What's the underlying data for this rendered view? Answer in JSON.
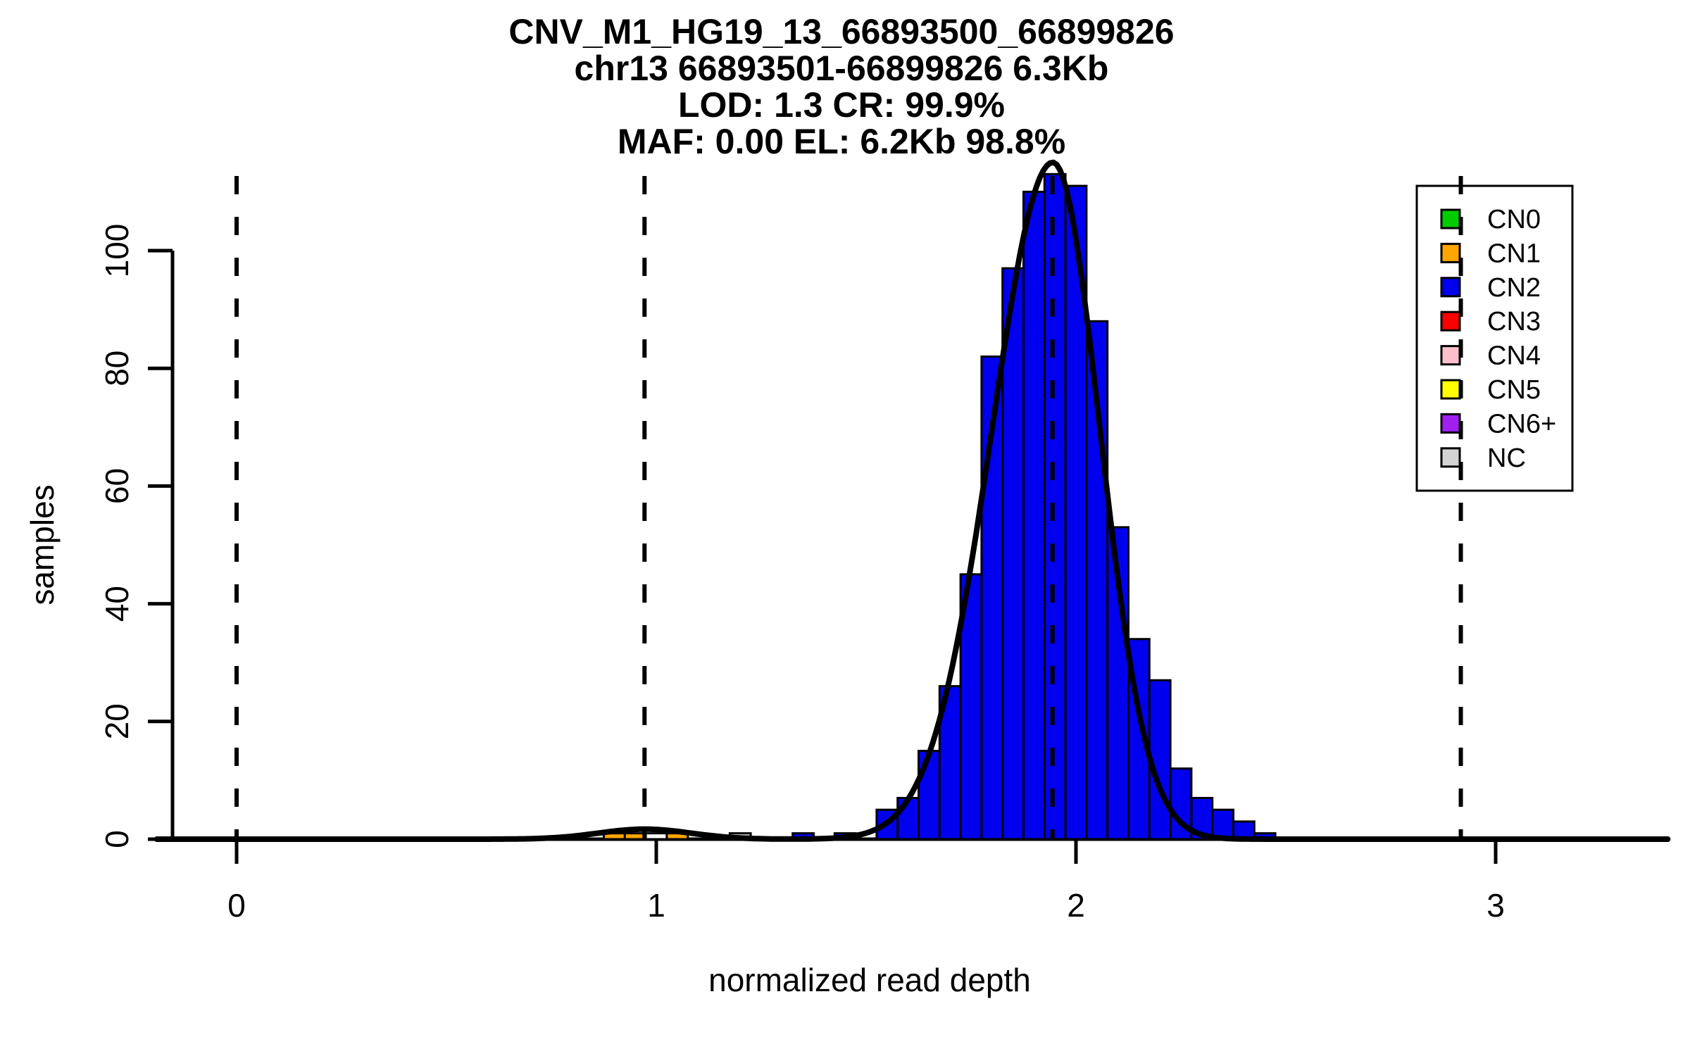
{
  "chart_data": {
    "type": "bar",
    "subtype": "histogram",
    "title_lines": [
      "CNV_M1_HG19_13_66893500_66899826",
      "chr13 66893501-66899826 6.3Kb",
      "LOD: 1.3 CR: 99.9%",
      "MAF: 0.00 EL: 6.2Kb 98.8%"
    ],
    "xlabel": "normalized read depth",
    "ylabel": "samples",
    "x_ticks": [
      0,
      1,
      2,
      3
    ],
    "y_ticks": [
      0,
      20,
      40,
      60,
      80,
      100
    ],
    "xlim": [
      -0.19,
      3.41
    ],
    "ylim": [
      0,
      115
    ],
    "grid": false,
    "bin_width": 0.05,
    "bars": [
      {
        "x0": 0.875,
        "count": 1,
        "cn": "CN1"
      },
      {
        "x0": 0.925,
        "count": 1,
        "cn": "CN1"
      },
      {
        "x0": 0.975,
        "count": 1,
        "cn": "NONE"
      },
      {
        "x0": 1.025,
        "count": 1,
        "cn": "CN1"
      },
      {
        "x0": 1.175,
        "count": 1,
        "cn": "NC"
      },
      {
        "x0": 1.325,
        "count": 1,
        "cn": "CN2"
      },
      {
        "x0": 1.425,
        "count": 1,
        "cn": "CN2"
      },
      {
        "x0": 1.525,
        "count": 5,
        "cn": "CN2"
      },
      {
        "x0": 1.575,
        "count": 7,
        "cn": "CN2"
      },
      {
        "x0": 1.625,
        "count": 15,
        "cn": "CN2"
      },
      {
        "x0": 1.675,
        "count": 26,
        "cn": "CN2"
      },
      {
        "x0": 1.725,
        "count": 45,
        "cn": "CN2"
      },
      {
        "x0": 1.775,
        "count": 82,
        "cn": "CN2"
      },
      {
        "x0": 1.825,
        "count": 97,
        "cn": "CN2"
      },
      {
        "x0": 1.875,
        "count": 110,
        "cn": "CN2"
      },
      {
        "x0": 1.925,
        "count": 113,
        "cn": "CN2"
      },
      {
        "x0": 1.975,
        "count": 111,
        "cn": "CN2"
      },
      {
        "x0": 2.025,
        "count": 88,
        "cn": "CN2"
      },
      {
        "x0": 2.075,
        "count": 53,
        "cn": "CN2"
      },
      {
        "x0": 2.125,
        "count": 34,
        "cn": "CN2"
      },
      {
        "x0": 2.175,
        "count": 27,
        "cn": "CN2"
      },
      {
        "x0": 2.225,
        "count": 12,
        "cn": "CN2"
      },
      {
        "x0": 2.275,
        "count": 7,
        "cn": "CN2"
      },
      {
        "x0": 2.325,
        "count": 5,
        "cn": "CN2"
      },
      {
        "x0": 2.375,
        "count": 3,
        "cn": "CN2"
      },
      {
        "x0": 2.425,
        "count": 1,
        "cn": "CN2"
      }
    ],
    "bar_colors": {
      "CN0": "#00CC00",
      "CN1": "#FFA500",
      "CN2": "#0000EE",
      "CN3": "#FF0000",
      "CN4": "#FFC0CB",
      "CN5": "#FFFF00",
      "CN6+": "#A020F0",
      "NC": "#D3D3D3",
      "NONE": "#FFFFFF"
    },
    "legend": {
      "position": "top-right",
      "entries": [
        "CN0",
        "CN1",
        "CN2",
        "CN3",
        "CN4",
        "CN5",
        "CN6+",
        "NC"
      ]
    },
    "dashed_vlines_x": [
      0,
      0.972,
      1.944,
      2.917
    ],
    "fit_curve": {
      "color": "#000000",
      "components": [
        {
          "mu": 1.945,
          "amplitude": 115,
          "sigma_left": 0.145,
          "sigma_right": 0.112
        },
        {
          "mu": 0.972,
          "amplitude": 1.7,
          "sigma_left": 0.11,
          "sigma_right": 0.11
        }
      ]
    }
  }
}
